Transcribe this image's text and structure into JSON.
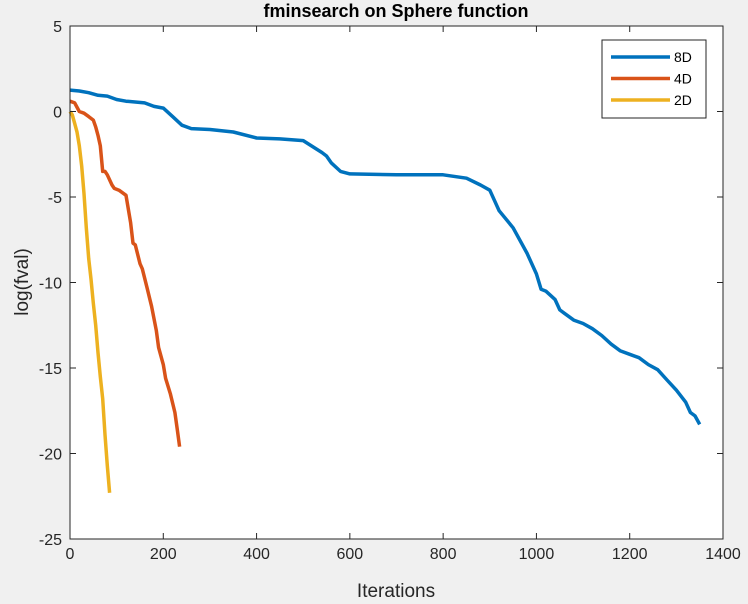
{
  "chart_data": {
    "type": "line",
    "title": "fminsearch on Sphere function",
    "xlabel": "Iterations",
    "ylabel": "log(fval)",
    "xlim": [
      0,
      1400
    ],
    "ylim": [
      -25,
      5
    ],
    "xticks": [
      0,
      200,
      400,
      600,
      800,
      1000,
      1200,
      1400
    ],
    "yticks": [
      -25,
      -20,
      -15,
      -10,
      -5,
      0,
      5
    ],
    "grid": false,
    "legend_position": "top-right",
    "series": [
      {
        "name": "8D",
        "color": "#0072BD",
        "x": [
          0,
          20,
          40,
          60,
          80,
          100,
          120,
          160,
          180,
          200,
          220,
          240,
          260,
          300,
          350,
          400,
          450,
          500,
          540,
          550,
          560,
          580,
          600,
          700,
          800,
          850,
          880,
          900,
          920,
          950,
          980,
          1000,
          1010,
          1020,
          1040,
          1050,
          1060,
          1080,
          1100,
          1120,
          1140,
          1160,
          1180,
          1200,
          1220,
          1240,
          1260,
          1280,
          1300,
          1320,
          1330,
          1340,
          1350
        ],
        "values": [
          1.25,
          1.2,
          1.1,
          0.95,
          0.9,
          0.7,
          0.6,
          0.5,
          0.3,
          0.2,
          -0.3,
          -0.8,
          -1.0,
          -1.05,
          -1.2,
          -1.55,
          -1.6,
          -1.7,
          -2.4,
          -2.6,
          -3.0,
          -3.5,
          -3.65,
          -3.7,
          -3.7,
          -3.9,
          -4.3,
          -4.6,
          -5.8,
          -6.8,
          -8.3,
          -9.5,
          -10.4,
          -10.5,
          -11.0,
          -11.6,
          -11.8,
          -12.2,
          -12.4,
          -12.7,
          -13.1,
          -13.6,
          -14.0,
          -14.2,
          -14.4,
          -14.8,
          -15.1,
          -15.7,
          -16.3,
          -17.0,
          -17.6,
          -17.8,
          -18.3
        ]
      },
      {
        "name": "4D",
        "color": "#D95319",
        "x": [
          0,
          10,
          20,
          30,
          40,
          50,
          55,
          60,
          65,
          70,
          75,
          80,
          90,
          95,
          105,
          120,
          130,
          135,
          140,
          150,
          155,
          165,
          175,
          185,
          190,
          200,
          205,
          215,
          225,
          230,
          235
        ],
        "values": [
          0.6,
          0.5,
          0.0,
          -0.1,
          -0.3,
          -0.5,
          -0.9,
          -1.4,
          -2.0,
          -3.5,
          -3.5,
          -3.7,
          -4.3,
          -4.5,
          -4.6,
          -4.9,
          -6.5,
          -7.7,
          -7.8,
          -8.9,
          -9.2,
          -10.3,
          -11.4,
          -12.8,
          -13.8,
          -14.8,
          -15.6,
          -16.5,
          -17.6,
          -18.6,
          -19.6
        ]
      },
      {
        "name": "2D",
        "color": "#EDB120",
        "x": [
          0,
          5,
          10,
          15,
          20,
          25,
          30,
          35,
          40,
          45,
          50,
          55,
          60,
          65,
          70,
          75,
          80,
          85
        ],
        "values": [
          0.0,
          -0.2,
          -0.7,
          -1.2,
          -2.0,
          -3.2,
          -4.8,
          -6.8,
          -8.6,
          -9.8,
          -11.2,
          -12.5,
          -14.1,
          -15.5,
          -16.8,
          -18.9,
          -20.7,
          -22.3
        ]
      }
    ]
  }
}
